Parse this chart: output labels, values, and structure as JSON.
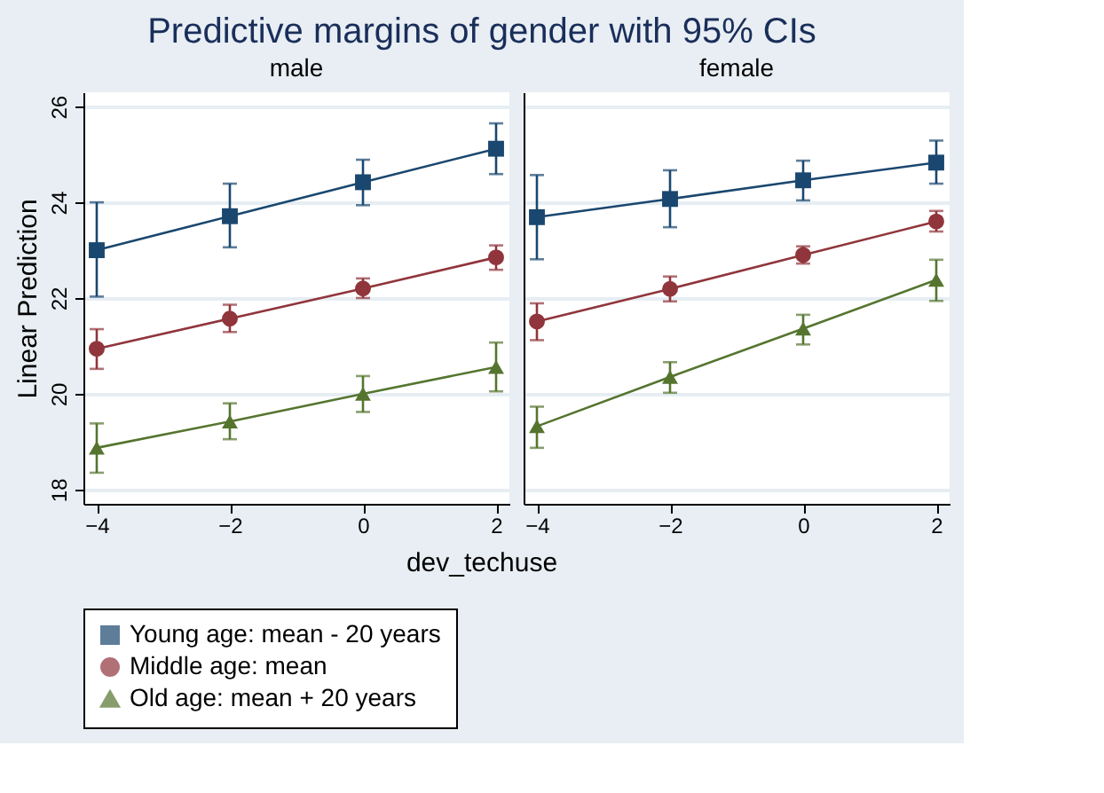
{
  "chart_data": [
    {
      "type": "line",
      "title": "Predictive margins of gender with 95% CIs",
      "subtitle": "male",
      "xlabel": "dev_techuse",
      "ylabel": "Linear Prediction",
      "x": [
        -4,
        -2,
        0,
        2
      ],
      "xlim": [
        -4.2,
        2.2
      ],
      "xticks": [
        -4,
        -2,
        0,
        2
      ],
      "ylim": [
        17.7,
        26.3
      ],
      "yticks": [
        18,
        20,
        22,
        24,
        26
      ],
      "grid": "y",
      "legend": "bottom",
      "series": [
        {
          "name": "Young age: mean - 20 years",
          "color": "#1a476f",
          "marker": "square",
          "values": [
            23.0,
            23.71,
            24.42,
            25.12
          ],
          "errors": [
            [
              22.03,
              24.0
            ],
            [
              23.06,
              24.39
            ],
            [
              23.94,
              24.89
            ],
            [
              24.59,
              25.65
            ]
          ]
        },
        {
          "name": "Middle age: mean",
          "color": "#90353b",
          "marker": "circle",
          "values": [
            20.94,
            21.57,
            22.2,
            22.85
          ],
          "errors": [
            [
              20.52,
              21.35
            ],
            [
              21.29,
              21.86
            ],
            [
              22.0,
              22.41
            ],
            [
              22.59,
              23.1
            ]
          ]
        },
        {
          "name": "Old age: mean + 20 years",
          "color": "#55752f",
          "marker": "triangle",
          "values": [
            18.87,
            19.42,
            20.0,
            20.56
          ],
          "errors": [
            [
              18.35,
              19.38
            ],
            [
              19.05,
              19.8
            ],
            [
              19.62,
              20.37
            ],
            [
              20.05,
              21.07
            ]
          ]
        }
      ]
    },
    {
      "type": "line",
      "subtitle": "female",
      "tick_labels": "x",
      "x": [
        -4,
        -2,
        0,
        2
      ],
      "xlim": [
        -4.2,
        2.2
      ],
      "xticks": [
        -4,
        -2,
        0,
        2
      ],
      "ylim": [
        17.7,
        26.3
      ],
      "yticks": [
        18,
        20,
        22,
        24,
        26
      ],
      "grid": "y",
      "legend": "bottom",
      "series": [
        {
          "name": "Young age: mean - 20 years",
          "color": "#1a476f",
          "marker": "square",
          "values": [
            23.69,
            24.07,
            24.46,
            24.83
          ],
          "errors": [
            [
              22.81,
              24.57
            ],
            [
              23.48,
              24.67
            ],
            [
              24.04,
              24.87
            ],
            [
              24.39,
              25.29
            ]
          ]
        },
        {
          "name": "Middle age: mean",
          "color": "#90353b",
          "marker": "circle",
          "values": [
            21.51,
            22.19,
            22.9,
            23.6
          ],
          "errors": [
            [
              21.12,
              21.89
            ],
            [
              21.93,
              22.45
            ],
            [
              22.72,
              23.08
            ],
            [
              23.39,
              23.82
            ]
          ]
        },
        {
          "name": "Old age: mean + 20 years",
          "color": "#55752f",
          "marker": "triangle",
          "values": [
            19.32,
            20.35,
            21.36,
            22.38
          ],
          "errors": [
            [
              18.87,
              19.73
            ],
            [
              20.02,
              20.66
            ],
            [
              21.03,
              21.65
            ],
            [
              21.94,
              22.8
            ]
          ]
        }
      ]
    }
  ]
}
